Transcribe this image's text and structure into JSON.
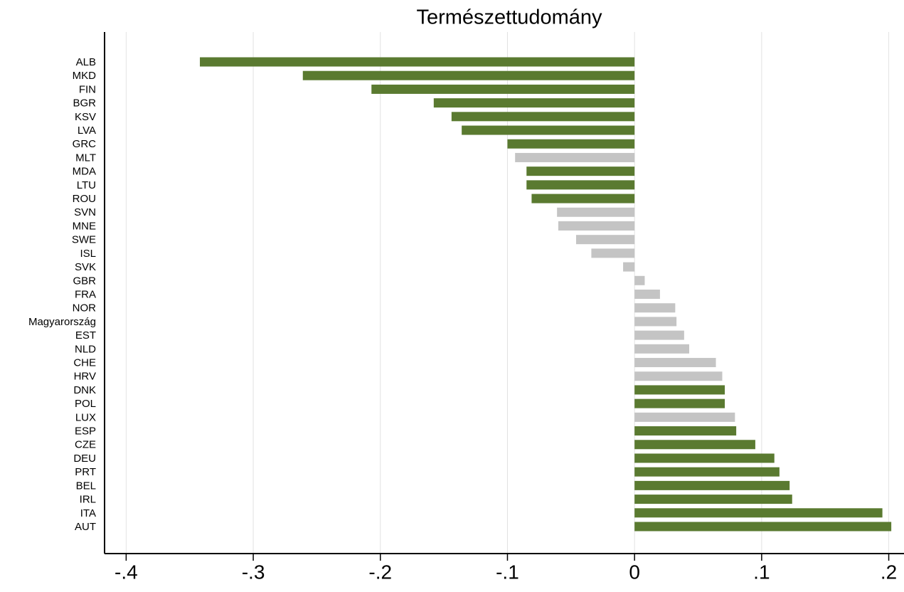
{
  "chart_data": {
    "type": "barh",
    "title": "Természettudomány",
    "categories": [
      "ALB",
      "MKD",
      "FIN",
      "BGR",
      "KSV",
      "LVA",
      "GRC",
      "MLT",
      "MDA",
      "LTU",
      "ROU",
      "SVN",
      "MNE",
      "SWE",
      "ISL",
      "SVK",
      "GBR",
      "FRA",
      "NOR",
      "Magyarország",
      "EST",
      "NLD",
      "CHE",
      "HRV",
      "DNK",
      "POL",
      "LUX",
      "ESP",
      "CZE",
      "DEU",
      "PRT",
      "BEL",
      "IRL",
      "ITA",
      "AUT"
    ],
    "values": [
      -0.342,
      -0.261,
      -0.207,
      -0.158,
      -0.144,
      -0.136,
      -0.1,
      -0.094,
      -0.085,
      -0.085,
      -0.081,
      -0.061,
      -0.06,
      -0.046,
      -0.034,
      -0.009,
      0.008,
      0.02,
      0.032,
      0.033,
      0.039,
      0.043,
      0.064,
      0.069,
      0.071,
      0.071,
      0.079,
      0.08,
      0.095,
      0.11,
      0.114,
      0.122,
      0.124,
      0.195,
      0.202
    ],
    "colors": [
      "#5a7a30",
      "#5a7a30",
      "#5a7a30",
      "#5a7a30",
      "#5a7a30",
      "#5a7a30",
      "#5a7a30",
      "#c4c4c4",
      "#5a7a30",
      "#5a7a30",
      "#5a7a30",
      "#c4c4c4",
      "#c4c4c4",
      "#c4c4c4",
      "#c4c4c4",
      "#c4c4c4",
      "#c4c4c4",
      "#c4c4c4",
      "#c4c4c4",
      "#c4c4c4",
      "#c4c4c4",
      "#c4c4c4",
      "#c4c4c4",
      "#c4c4c4",
      "#5a7a30",
      "#5a7a30",
      "#c4c4c4",
      "#5a7a30",
      "#5a7a30",
      "#5a7a30",
      "#5a7a30",
      "#5a7a30",
      "#5a7a30",
      "#5a7a30",
      "#5a7a30"
    ],
    "xlim": [
      -0.417,
      0.212
    ],
    "xticks": [
      {
        "value": -0.4,
        "label": "-.4"
      },
      {
        "value": -0.3,
        "label": "-.3"
      },
      {
        "value": -0.2,
        "label": "-.2"
      },
      {
        "value": -0.1,
        "label": "-.1"
      },
      0,
      {
        "value": 0.1,
        "label": ".1"
      },
      {
        "value": 0.2,
        "label": ".2"
      }
    ],
    "grid": true
  }
}
